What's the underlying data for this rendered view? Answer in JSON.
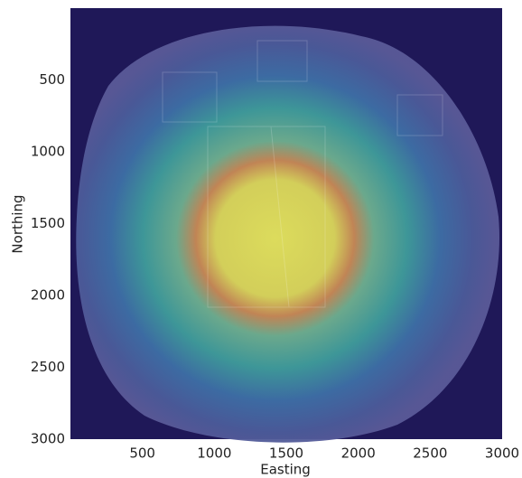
{
  "chart_data": {
    "type": "image",
    "x_label": "Easting",
    "y_label": "Northing",
    "xlim": [
      0,
      3000
    ],
    "xticks": [
      500,
      1000,
      1500,
      2000,
      2500,
      3000
    ],
    "ylim": [
      0,
      3000
    ],
    "yticks": [
      500,
      1000,
      1500,
      2000,
      2500,
      3000
    ],
    "y_inverted": true
  }
}
